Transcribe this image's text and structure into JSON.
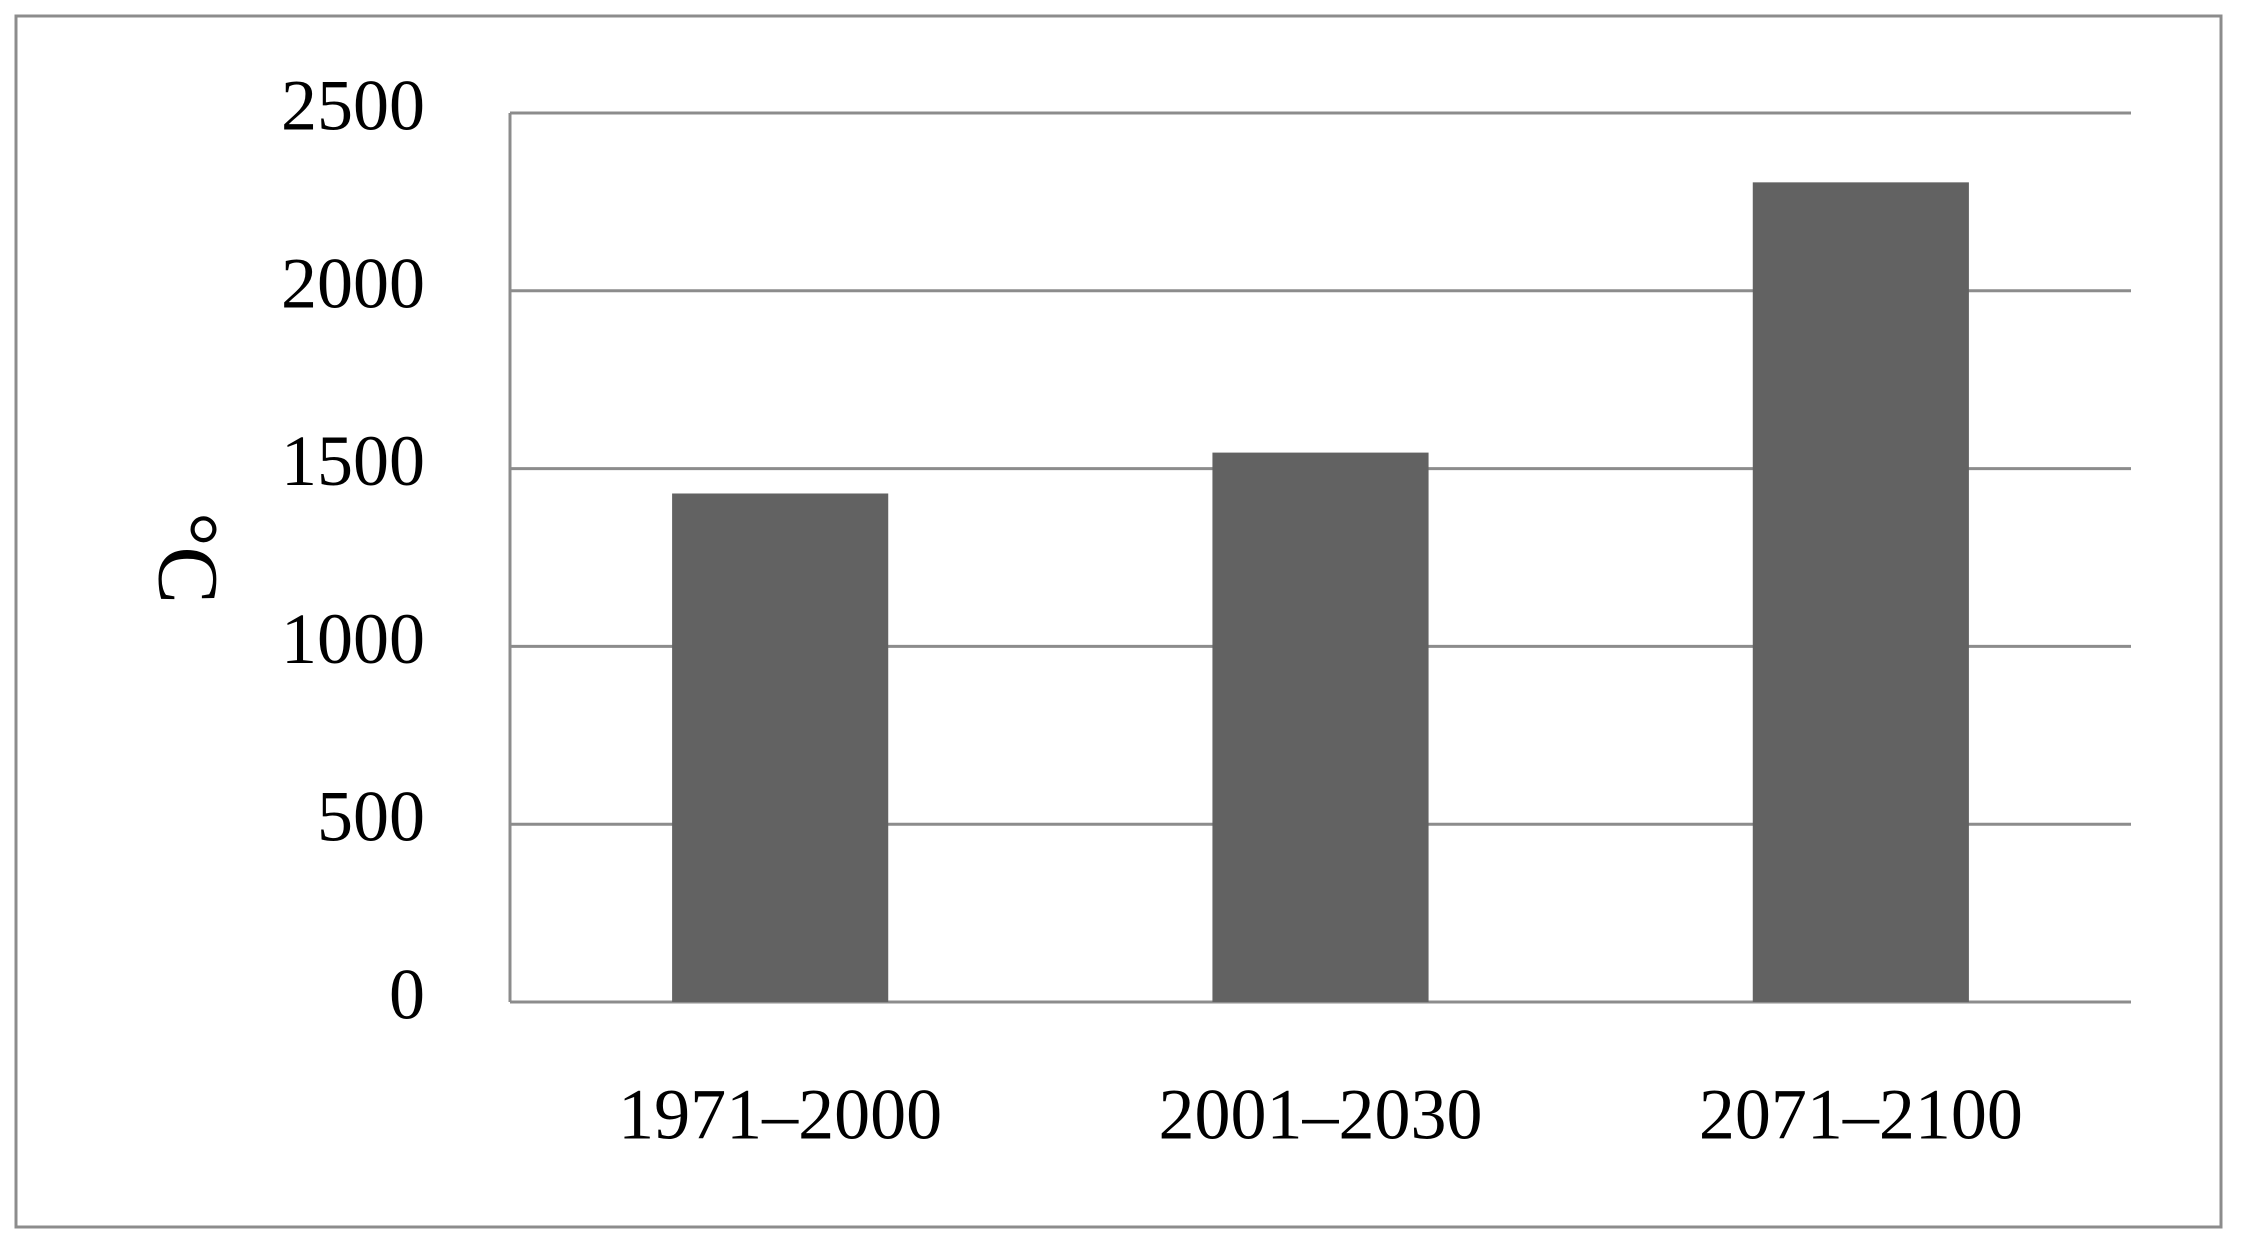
{
  "chart_data": {
    "type": "bar",
    "y_label": "°C",
    "categories": [
      "1971–2000",
      "2001–2030",
      "2071–2100"
    ],
    "values": [
      1430,
      1545,
      2305
    ],
    "color": "#626262",
    "ylim": [
      0,
      2500
    ],
    "yticks": [
      0,
      500,
      1000,
      1500,
      2000,
      2500
    ],
    "grid": true
  }
}
